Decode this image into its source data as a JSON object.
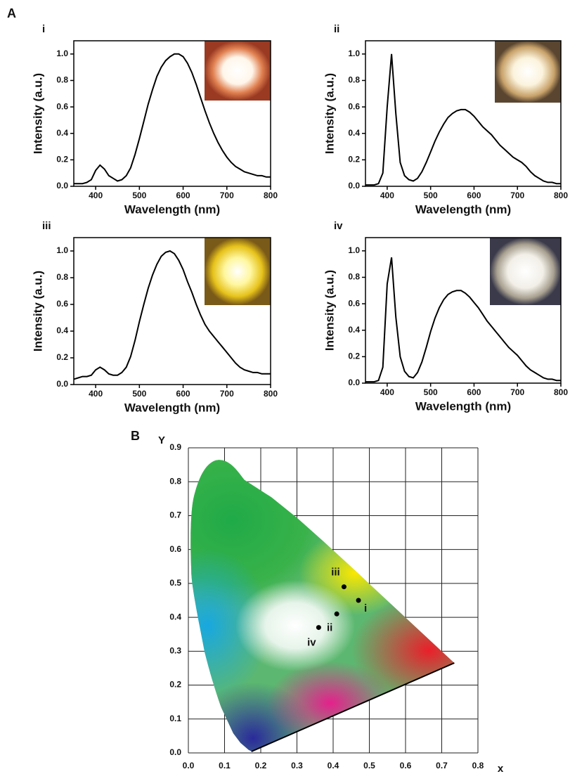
{
  "panel_labels": [
    "A",
    "B"
  ],
  "chart_data": [
    {
      "type": "line",
      "title": "i",
      "xlabel": "Wavelength (nm)",
      "ylabel": "Intensity (a.u.)",
      "color": "#000000",
      "x": [
        350,
        360,
        370,
        380,
        390,
        400,
        410,
        420,
        430,
        440,
        450,
        460,
        470,
        480,
        490,
        500,
        510,
        520,
        530,
        540,
        550,
        560,
        570,
        580,
        590,
        600,
        610,
        620,
        630,
        640,
        650,
        660,
        670,
        680,
        690,
        700,
        710,
        720,
        730,
        740,
        750,
        760,
        770,
        780,
        790,
        800
      ],
      "values": [
        0.02,
        0.02,
        0.02,
        0.03,
        0.05,
        0.12,
        0.16,
        0.13,
        0.08,
        0.06,
        0.04,
        0.05,
        0.08,
        0.14,
        0.24,
        0.36,
        0.49,
        0.62,
        0.73,
        0.83,
        0.9,
        0.95,
        0.98,
        1.0,
        1.0,
        0.98,
        0.93,
        0.86,
        0.77,
        0.67,
        0.57,
        0.48,
        0.4,
        0.33,
        0.27,
        0.22,
        0.18,
        0.15,
        0.13,
        0.11,
        0.1,
        0.09,
        0.08,
        0.08,
        0.07,
        0.07
      ],
      "xlim": [
        350,
        800
      ],
      "xticks": [
        400,
        500,
        600,
        700,
        800
      ],
      "ylim": [
        0,
        1.1
      ],
      "yticks": [
        {
          "value": 0,
          "label": "0.0"
        },
        0.2,
        0.4,
        0.6,
        0.8,
        {
          "value": 1,
          "label": "1.0"
        }
      ]
    },
    {
      "type": "line",
      "title": "ii",
      "xlabel": "Wavelength (nm)",
      "ylabel": "Intensity (a.u.)",
      "color": "#000000",
      "x": [
        350,
        360,
        370,
        380,
        390,
        400,
        410,
        420,
        430,
        440,
        450,
        460,
        470,
        480,
        490,
        500,
        510,
        520,
        530,
        540,
        550,
        560,
        570,
        580,
        590,
        600,
        610,
        620,
        630,
        640,
        650,
        660,
        670,
        680,
        690,
        700,
        710,
        720,
        730,
        740,
        750,
        760,
        770,
        780,
        790,
        800
      ],
      "values": [
        0.01,
        0.01,
        0.01,
        0.02,
        0.1,
        0.6,
        1.0,
        0.55,
        0.18,
        0.08,
        0.05,
        0.04,
        0.06,
        0.11,
        0.18,
        0.26,
        0.34,
        0.41,
        0.47,
        0.52,
        0.55,
        0.57,
        0.58,
        0.58,
        0.56,
        0.53,
        0.49,
        0.45,
        0.42,
        0.39,
        0.35,
        0.31,
        0.28,
        0.25,
        0.22,
        0.2,
        0.18,
        0.15,
        0.11,
        0.08,
        0.06,
        0.04,
        0.03,
        0.03,
        0.02,
        0.02
      ],
      "xlim": [
        350,
        800
      ],
      "xticks": [
        400,
        500,
        600,
        700,
        800
      ],
      "ylim": [
        0,
        1.1
      ],
      "yticks": [
        {
          "value": 0,
          "label": "0.0"
        },
        0.2,
        0.4,
        0.6,
        0.8,
        {
          "value": 1,
          "label": "1.0"
        }
      ]
    },
    {
      "type": "line",
      "title": "iii",
      "xlabel": "Wavelength (nm)",
      "ylabel": "Intensity (a.u.)",
      "color": "#000000",
      "x": [
        350,
        360,
        370,
        380,
        390,
        400,
        410,
        420,
        430,
        440,
        450,
        460,
        470,
        480,
        490,
        500,
        510,
        520,
        530,
        540,
        550,
        560,
        570,
        580,
        590,
        600,
        610,
        620,
        630,
        640,
        650,
        660,
        670,
        680,
        690,
        700,
        710,
        720,
        730,
        740,
        750,
        760,
        770,
        780,
        790,
        800
      ],
      "values": [
        0.04,
        0.05,
        0.06,
        0.06,
        0.07,
        0.11,
        0.13,
        0.11,
        0.08,
        0.07,
        0.07,
        0.09,
        0.13,
        0.21,
        0.33,
        0.47,
        0.6,
        0.72,
        0.82,
        0.9,
        0.96,
        0.99,
        1.0,
        0.98,
        0.93,
        0.86,
        0.77,
        0.69,
        0.6,
        0.52,
        0.45,
        0.4,
        0.36,
        0.32,
        0.28,
        0.24,
        0.2,
        0.16,
        0.13,
        0.11,
        0.1,
        0.09,
        0.09,
        0.08,
        0.08,
        0.08
      ],
      "xlim": [
        350,
        800
      ],
      "xticks": [
        400,
        500,
        600,
        700,
        800
      ],
      "ylim": [
        0,
        1.1
      ],
      "yticks": [
        {
          "value": 0,
          "label": "0.0"
        },
        0.2,
        0.4,
        0.6,
        0.8,
        {
          "value": 1,
          "label": "1.0"
        }
      ]
    },
    {
      "type": "line",
      "title": "iv",
      "xlabel": "Wavelength (nm)",
      "ylabel": "Intensity (a.u.)",
      "color": "#000000",
      "x": [
        350,
        360,
        370,
        380,
        390,
        400,
        410,
        420,
        430,
        440,
        450,
        460,
        470,
        480,
        490,
        500,
        510,
        520,
        530,
        540,
        550,
        560,
        570,
        580,
        590,
        600,
        610,
        620,
        630,
        640,
        650,
        660,
        670,
        680,
        690,
        700,
        710,
        720,
        730,
        740,
        750,
        760,
        770,
        780,
        790,
        800
      ],
      "values": [
        0.01,
        0.01,
        0.01,
        0.02,
        0.12,
        0.75,
        0.95,
        0.5,
        0.2,
        0.09,
        0.05,
        0.04,
        0.08,
        0.16,
        0.27,
        0.39,
        0.49,
        0.57,
        0.63,
        0.67,
        0.69,
        0.7,
        0.7,
        0.68,
        0.65,
        0.61,
        0.57,
        0.52,
        0.47,
        0.43,
        0.39,
        0.35,
        0.31,
        0.27,
        0.24,
        0.21,
        0.17,
        0.13,
        0.1,
        0.08,
        0.06,
        0.04,
        0.03,
        0.03,
        0.02,
        0.02
      ],
      "xlim": [
        350,
        800
      ],
      "xticks": [
        400,
        500,
        600,
        700,
        800
      ],
      "ylim": [
        0,
        1.1
      ],
      "yticks": [
        {
          "value": 0,
          "label": "0.0"
        },
        0.2,
        0.4,
        0.6,
        0.8,
        {
          "value": 1,
          "label": "1.0"
        }
      ]
    },
    {
      "type": "scatter",
      "xlabel": "x",
      "ylabel": "Y",
      "color": "#000000",
      "x": [
        0.47,
        0.41,
        0.43,
        0.36
      ],
      "values": [
        0.45,
        0.41,
        0.49,
        0.37
      ],
      "point_labels": [
        "i",
        "ii",
        "iii",
        "iv"
      ],
      "xlim": [
        0,
        0.8
      ],
      "xticks": [
        {
          "value": 0,
          "label": "0.0"
        },
        0.1,
        0.2,
        0.3,
        0.4,
        0.5,
        0.6,
        0.7,
        0.8
      ],
      "ylim": [
        0,
        0.9
      ],
      "yticks": [
        {
          "value": 0,
          "label": "0.0"
        },
        0.1,
        0.2,
        0.3,
        0.4,
        0.5,
        0.6,
        0.7,
        0.8,
        0.9
      ],
      "grid": true
    }
  ]
}
